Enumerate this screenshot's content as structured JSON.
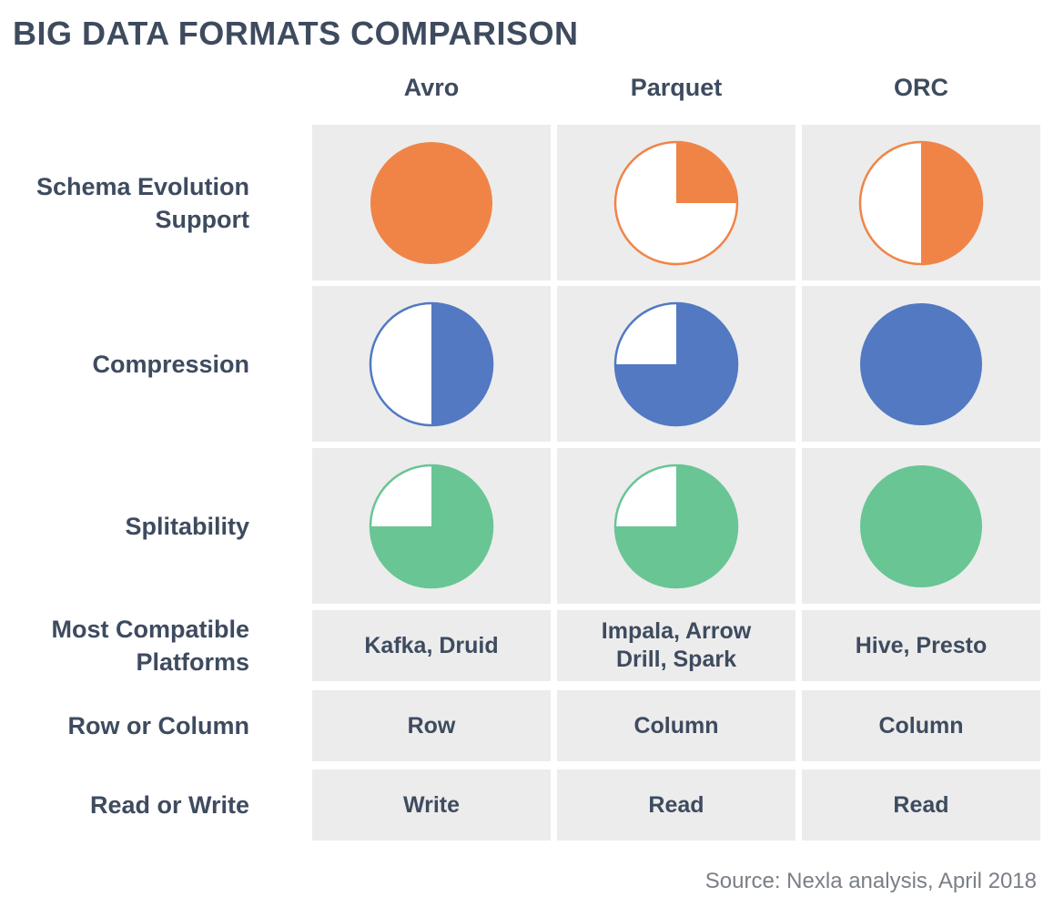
{
  "title": "BIG DATA FORMATS COMPARISON",
  "source": "Source: Nexla analysis, April 2018",
  "colors": {
    "schema": "#f08447",
    "compression": "#5279c2",
    "splitability": "#69c594",
    "cell_bg": "#ececec",
    "text": "#3e4b5f"
  },
  "chart_data": {
    "type": "table",
    "title": "BIG DATA FORMATS COMPARISON",
    "columns": [
      "Avro",
      "Parquet",
      "ORC"
    ],
    "rating_rows": [
      {
        "label_lines": [
          "Schema Evolution",
          "Support"
        ],
        "color_key": "schema",
        "values": [
          1.0,
          0.25,
          0.5
        ]
      },
      {
        "label_lines": [
          "Compression"
        ],
        "color_key": "compression",
        "values": [
          0.5,
          0.75,
          1.0
        ]
      },
      {
        "label_lines": [
          "Splitability"
        ],
        "color_key": "splitability",
        "values": [
          0.75,
          0.75,
          1.0
        ]
      }
    ],
    "text_rows": [
      {
        "label_lines": [
          "Most Compatible",
          "Platforms"
        ],
        "values": [
          [
            "Kafka, Druid"
          ],
          [
            "Impala, Arrow",
            "Drill, Spark"
          ],
          [
            "Hive, Presto"
          ]
        ]
      },
      {
        "label_lines": [
          "Row or Column"
        ],
        "values": [
          [
            "Row"
          ],
          [
            "Column"
          ],
          [
            "Column"
          ]
        ]
      },
      {
        "label_lines": [
          "Read or Write"
        ],
        "values": [
          [
            "Write"
          ],
          [
            "Read"
          ],
          [
            "Read"
          ]
        ]
      }
    ]
  }
}
